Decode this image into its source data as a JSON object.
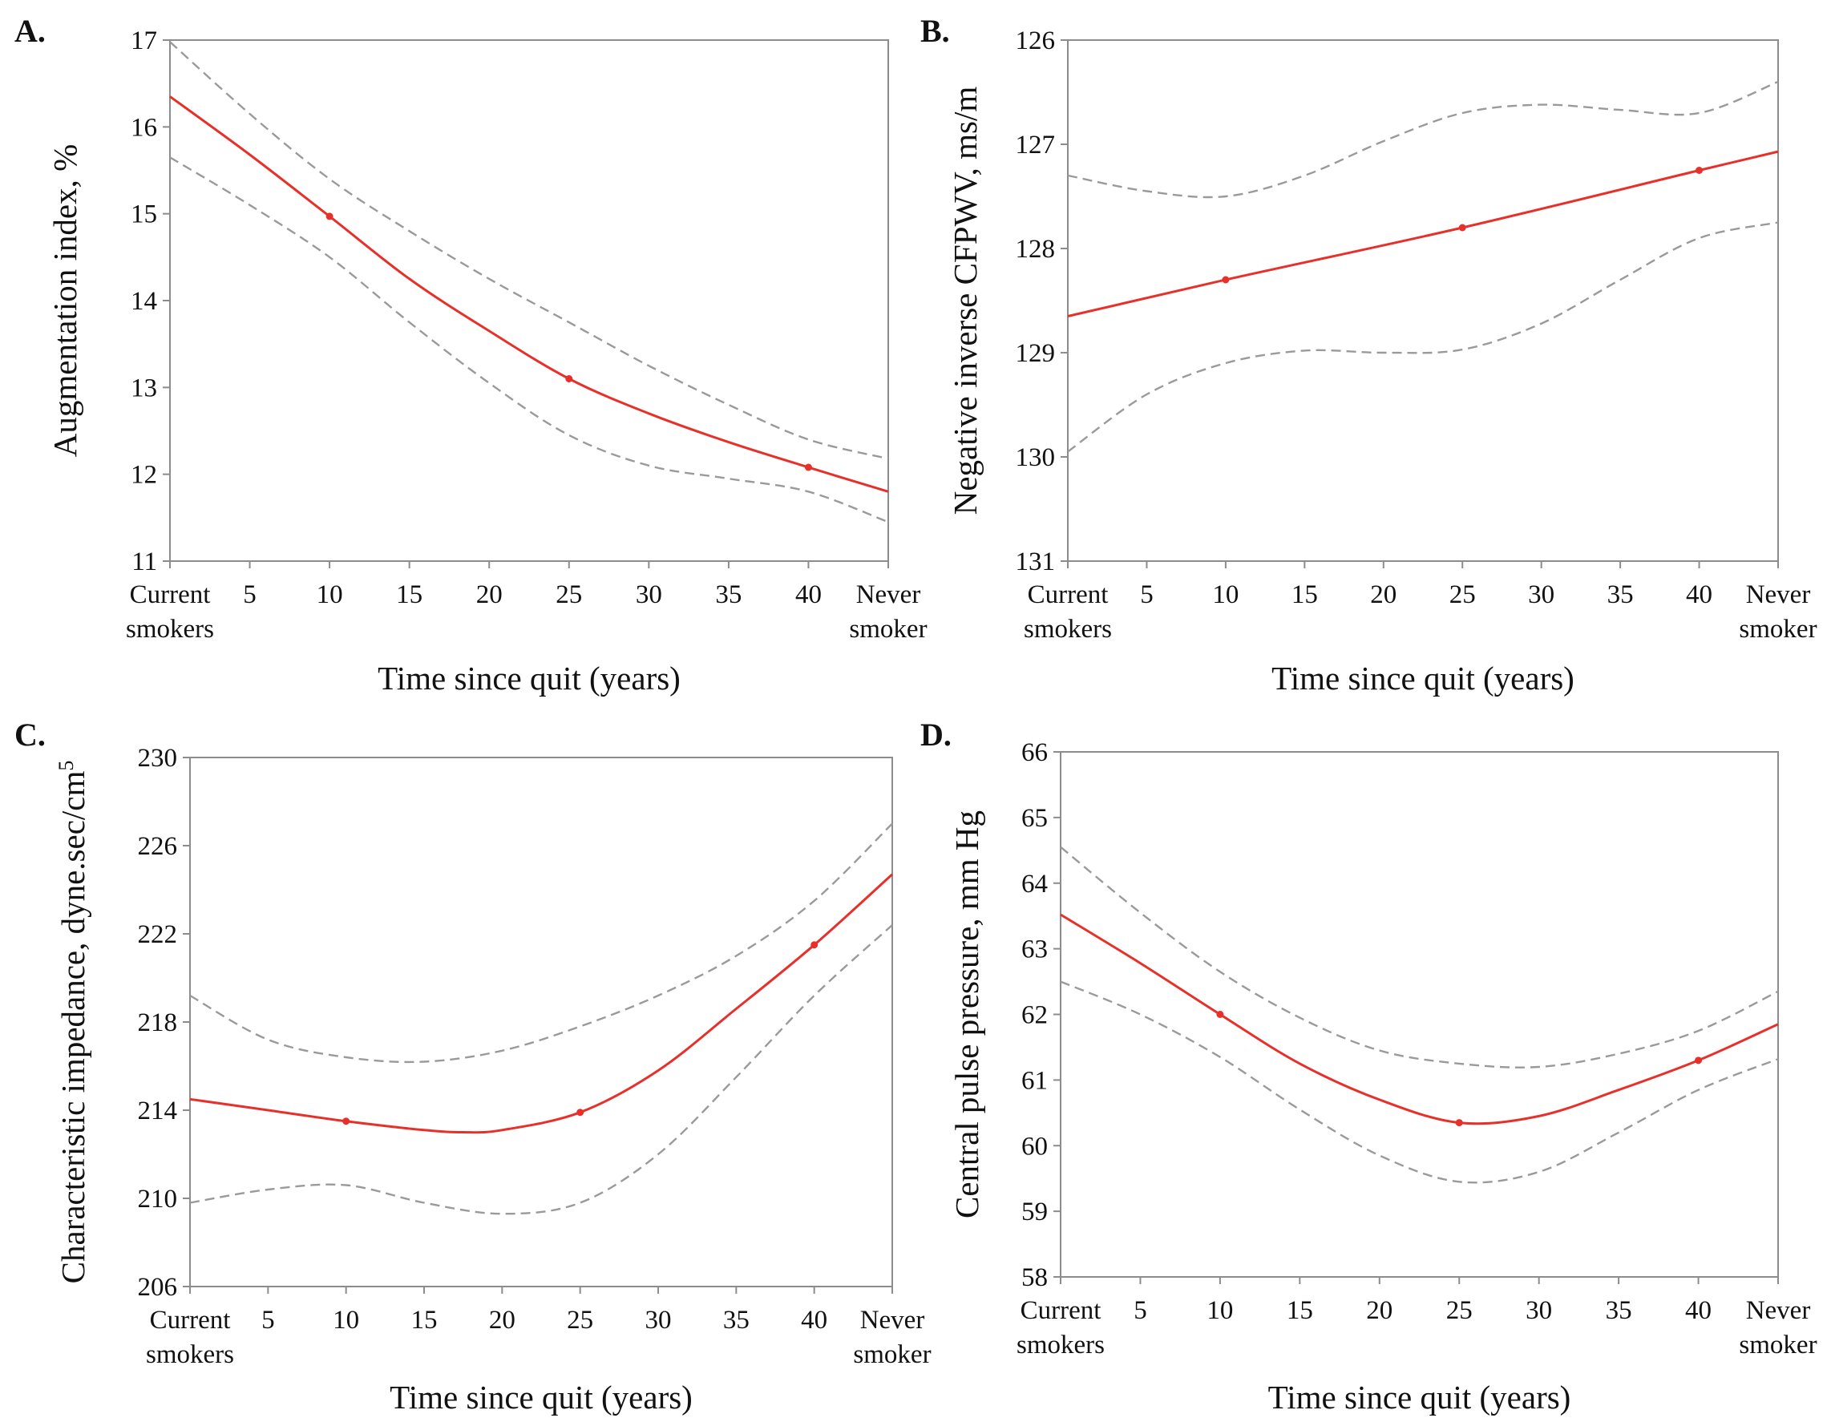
{
  "colors": {
    "fit_line": "#e8302a",
    "ci_line": "#9a9a9a",
    "frame": "#8c8c8c",
    "text": "#111111"
  },
  "chart_data": [
    {
      "panel": "A.",
      "type": "line",
      "xlabel": "Time since quit (years)",
      "ylabel": "Augmentation index, %",
      "xlim": [
        0,
        45
      ],
      "ylim": [
        11,
        17
      ],
      "y_reversed": false,
      "x_ticks": [
        {
          "x": 0,
          "lines": [
            "Current",
            "smokers"
          ]
        },
        {
          "x": 5,
          "lines": [
            "5"
          ]
        },
        {
          "x": 10,
          "lines": [
            "10"
          ]
        },
        {
          "x": 15,
          "lines": [
            "15"
          ]
        },
        {
          "x": 20,
          "lines": [
            "20"
          ]
        },
        {
          "x": 25,
          "lines": [
            "25"
          ]
        },
        {
          "x": 30,
          "lines": [
            "30"
          ]
        },
        {
          "x": 35,
          "lines": [
            "35"
          ]
        },
        {
          "x": 40,
          "lines": [
            "40"
          ]
        },
        {
          "x": 45,
          "lines": [
            "Never",
            "smoker"
          ]
        }
      ],
      "y_ticks": [
        {
          "value": 17,
          "label": "17"
        },
        {
          "value": 16,
          "label": "16"
        },
        {
          "value": 15,
          "label": "15"
        },
        {
          "value": 14,
          "label": "14"
        },
        {
          "value": 13,
          "label": "13"
        },
        {
          "value": 12,
          "label": "12"
        },
        {
          "value": 11,
          "label": "11"
        }
      ],
      "estimate": {
        "x": [
          0,
          5,
          10,
          15,
          20,
          25,
          30,
          35,
          40,
          45
        ],
        "y": [
          16.35,
          15.68,
          14.97,
          14.25,
          13.65,
          13.1,
          12.7,
          12.37,
          12.08,
          11.8
        ]
      },
      "upper_ci": {
        "x": [
          0,
          5,
          10,
          15,
          20,
          25,
          30,
          35,
          40,
          45
        ],
        "y": [
          16.98,
          16.15,
          15.4,
          14.8,
          14.25,
          13.75,
          13.25,
          12.8,
          12.4,
          12.18
        ]
      },
      "lower_ci": {
        "x": [
          0,
          5,
          10,
          15,
          20,
          25,
          30,
          35,
          40,
          45
        ],
        "y": [
          15.65,
          15.1,
          14.5,
          13.75,
          13.05,
          12.45,
          12.1,
          11.95,
          11.8,
          11.45
        ]
      },
      "markers": {
        "x": [
          10,
          25,
          40
        ],
        "y": [
          14.97,
          13.1,
          12.08
        ]
      }
    },
    {
      "panel": "B.",
      "type": "line",
      "xlabel": "Time since quit (years)",
      "ylabel": "Negative inverse CFPWV, ms/m",
      "xlim": [
        0,
        45
      ],
      "ylim": [
        126,
        131
      ],
      "y_reversed": true,
      "x_ticks": [
        {
          "x": 0,
          "lines": [
            "Current",
            "smokers"
          ]
        },
        {
          "x": 5,
          "lines": [
            "5"
          ]
        },
        {
          "x": 10,
          "lines": [
            "10"
          ]
        },
        {
          "x": 15,
          "lines": [
            "15"
          ]
        },
        {
          "x": 20,
          "lines": [
            "20"
          ]
        },
        {
          "x": 25,
          "lines": [
            "25"
          ]
        },
        {
          "x": 30,
          "lines": [
            "30"
          ]
        },
        {
          "x": 35,
          "lines": [
            "35"
          ]
        },
        {
          "x": 40,
          "lines": [
            "40"
          ]
        },
        {
          "x": 45,
          "lines": [
            "Never",
            "smoker"
          ]
        }
      ],
      "y_ticks": [
        {
          "value": 126,
          "label": "126"
        },
        {
          "value": 127,
          "label": "127"
        },
        {
          "value": 128,
          "label": "128"
        },
        {
          "value": 129,
          "label": "129"
        },
        {
          "value": 130,
          "label": "130"
        },
        {
          "value": 131,
          "label": "131"
        }
      ],
      "estimate": {
        "x": [
          0,
          10,
          25,
          40,
          45
        ],
        "y": [
          128.65,
          128.3,
          127.8,
          127.25,
          127.07
        ]
      },
      "upper_ci": {
        "x": [
          0,
          5,
          10,
          15,
          20,
          25,
          30,
          35,
          40,
          45
        ],
        "y": [
          127.3,
          127.45,
          127.5,
          127.3,
          126.97,
          126.7,
          126.62,
          126.67,
          126.7,
          126.4
        ]
      },
      "lower_ci": {
        "x": [
          0,
          5,
          10,
          15,
          20,
          25,
          30,
          35,
          40,
          45
        ],
        "y": [
          129.95,
          129.4,
          129.1,
          128.98,
          129.0,
          128.97,
          128.72,
          128.3,
          127.9,
          127.75
        ]
      },
      "markers": {
        "x": [
          10,
          25,
          40
        ],
        "y": [
          128.3,
          127.8,
          127.25
        ]
      }
    },
    {
      "panel": "C.",
      "type": "line",
      "xlabel": "Time since quit (years)",
      "ylabel": "Characteristic impedance, dyne.sec/cm",
      "ylabel_superscript": "5",
      "xlim": [
        0,
        45
      ],
      "ylim": [
        206,
        230
      ],
      "y_reversed": false,
      "x_ticks": [
        {
          "x": 0,
          "lines": [
            "Current",
            "smokers"
          ]
        },
        {
          "x": 5,
          "lines": [
            "5"
          ]
        },
        {
          "x": 10,
          "lines": [
            "10"
          ]
        },
        {
          "x": 15,
          "lines": [
            "15"
          ]
        },
        {
          "x": 20,
          "lines": [
            "20"
          ]
        },
        {
          "x": 25,
          "lines": [
            "25"
          ]
        },
        {
          "x": 30,
          "lines": [
            "30"
          ]
        },
        {
          "x": 35,
          "lines": [
            "35"
          ]
        },
        {
          "x": 40,
          "lines": [
            "40"
          ]
        },
        {
          "x": 45,
          "lines": [
            "Never",
            "smoker"
          ]
        }
      ],
      "y_ticks": [
        {
          "value": 230,
          "label": "230"
        },
        {
          "value": 226,
          "label": "226"
        },
        {
          "value": 222,
          "label": "222"
        },
        {
          "value": 218,
          "label": "218"
        },
        {
          "value": 214,
          "label": "214"
        },
        {
          "value": 210,
          "label": "210"
        },
        {
          "value": 206,
          "label": "206"
        }
      ],
      "estimate": {
        "x": [
          0,
          5,
          10,
          15,
          17.5,
          20,
          25,
          30,
          35,
          40,
          45
        ],
        "y": [
          214.5,
          214.0,
          213.5,
          213.1,
          213.0,
          213.1,
          213.9,
          215.8,
          218.6,
          221.5,
          224.7
        ]
      },
      "upper_ci": {
        "x": [
          0,
          5,
          10,
          15,
          20,
          25,
          30,
          35,
          40,
          45
        ],
        "y": [
          219.2,
          217.2,
          216.4,
          216.2,
          216.7,
          217.8,
          219.2,
          221.0,
          223.5,
          227.0
        ]
      },
      "lower_ci": {
        "x": [
          0,
          5,
          10,
          15,
          20,
          25,
          30,
          35,
          40,
          45
        ],
        "y": [
          209.8,
          210.4,
          210.6,
          209.8,
          209.3,
          209.8,
          212.0,
          215.5,
          219.2,
          222.4
        ]
      },
      "markers": {
        "x": [
          10,
          25,
          40
        ],
        "y": [
          213.5,
          213.9,
          221.5
        ]
      }
    },
    {
      "panel": "D.",
      "type": "line",
      "xlabel": "Time since quit (years)",
      "ylabel": "Central pulse pressure, mm Hg",
      "xlim": [
        0,
        45
      ],
      "ylim": [
        58,
        66
      ],
      "y_reversed": false,
      "x_ticks": [
        {
          "x": 0,
          "lines": [
            "Current",
            "smokers"
          ]
        },
        {
          "x": 5,
          "lines": [
            "5"
          ]
        },
        {
          "x": 10,
          "lines": [
            "10"
          ]
        },
        {
          "x": 15,
          "lines": [
            "15"
          ]
        },
        {
          "x": 20,
          "lines": [
            "20"
          ]
        },
        {
          "x": 25,
          "lines": [
            "25"
          ]
        },
        {
          "x": 30,
          "lines": [
            "30"
          ]
        },
        {
          "x": 35,
          "lines": [
            "35"
          ]
        },
        {
          "x": 40,
          "lines": [
            "40"
          ]
        },
        {
          "x": 45,
          "lines": [
            "Never",
            "smoker"
          ]
        }
      ],
      "y_ticks": [
        {
          "value": 66,
          "label": "66"
        },
        {
          "value": 65,
          "label": "65"
        },
        {
          "value": 64,
          "label": "64"
        },
        {
          "value": 63,
          "label": "63"
        },
        {
          "value": 62,
          "label": "62"
        },
        {
          "value": 61,
          "label": "61"
        },
        {
          "value": 60,
          "label": "60"
        },
        {
          "value": 59,
          "label": "59"
        },
        {
          "value": 58,
          "label": "58"
        }
      ],
      "estimate": {
        "x": [
          0,
          5,
          10,
          15,
          20,
          25,
          30,
          35,
          40,
          45
        ],
        "y": [
          63.52,
          62.78,
          62.0,
          61.25,
          60.7,
          60.35,
          60.45,
          60.85,
          61.3,
          61.85
        ]
      },
      "upper_ci": {
        "x": [
          0,
          5,
          10,
          15,
          20,
          25,
          30,
          35,
          40,
          45
        ],
        "y": [
          64.55,
          63.55,
          62.65,
          61.95,
          61.45,
          61.25,
          61.2,
          61.4,
          61.75,
          62.35
        ]
      },
      "lower_ci": {
        "x": [
          0,
          5,
          10,
          15,
          20,
          25,
          30,
          35,
          40,
          45
        ],
        "y": [
          62.5,
          62.0,
          61.35,
          60.55,
          59.85,
          59.45,
          59.6,
          60.2,
          60.85,
          61.32
        ]
      },
      "markers": {
        "x": [
          10,
          25,
          40
        ],
        "y": [
          62.0,
          60.35,
          61.3
        ]
      }
    }
  ]
}
